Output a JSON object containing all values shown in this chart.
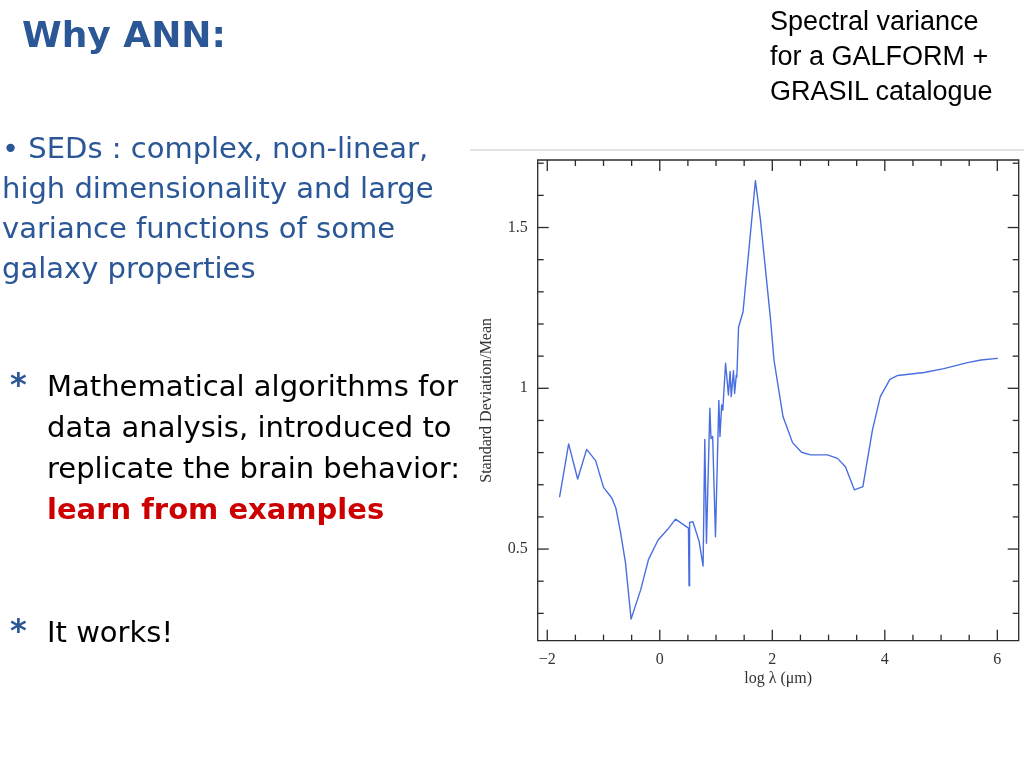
{
  "chart_data": {
    "type": "line",
    "title": "Why ANN:",
    "xlabel": "log λ (μm)",
    "ylabel": "Standard Deviation/Mean",
    "annotations": [
      "Spectral variance for a GALFORM + GRASIL catalogue",
      "• SEDs : complex, non-linear, high dimensionality and large variance functions of some galaxy properties",
      "*",
      "Mathematical algorithms for data analysis, introduced to replicate the brain behavior:",
      "learn from examples",
      "*",
      "It works!"
    ],
    "x": [
      -1.78,
      -1.62,
      -1.46,
      -1.3,
      -1.14,
      -1.0,
      -0.85,
      -0.78,
      -0.7,
      -0.61,
      -0.51,
      -0.34,
      -0.2,
      -0.03,
      0.13,
      0.28,
      0.51,
      0.52,
      0.53,
      0.59,
      0.7,
      0.77,
      0.8,
      0.83,
      0.89,
      0.91,
      0.94,
      0.99,
      1.05,
      1.07,
      1.1,
      1.12,
      1.17,
      1.22,
      1.25,
      1.27,
      1.31,
      1.33,
      1.36,
      1.37,
      1.4,
      1.48,
      1.7,
      1.79,
      1.97,
      2.03,
      2.19,
      2.36,
      2.52,
      2.68,
      2.98,
      3.16,
      3.3,
      3.46,
      3.61,
      3.78,
      3.92,
      4.09,
      4.23,
      4.7,
      5.05,
      5.47,
      5.71,
      6.0
    ],
    "series": [
      {
        "color": "#4a6ee0",
        "values": [
          0.663,
          0.827,
          0.718,
          0.81,
          0.775,
          0.692,
          0.658,
          0.627,
          0.554,
          0.458,
          0.282,
          0.373,
          0.468,
          0.528,
          0.559,
          0.593,
          0.565,
          0.386,
          0.583,
          0.585,
          0.523,
          0.447,
          0.841,
          0.518,
          0.938,
          0.844,
          0.85,
          0.538,
          0.962,
          0.85,
          0.948,
          0.932,
          1.078,
          0.979,
          1.052,
          0.974,
          1.055,
          0.984,
          1.041,
          1.035,
          1.19,
          1.238,
          1.646,
          1.523,
          1.212,
          1.088,
          0.912,
          0.831,
          0.801,
          0.793,
          0.793,
          0.782,
          0.756,
          0.684,
          0.694,
          0.87,
          0.974,
          1.028,
          1.04,
          1.049,
          1.061,
          1.08,
          1.088,
          1.093
        ]
      }
    ],
    "xlim": [
      -2.17,
      6.38
    ],
    "ylim": [
      0.215,
      1.71
    ],
    "xticks": [
      {
        "value": -2,
        "label": "−2"
      },
      {
        "value": -1.5,
        "label": null
      },
      {
        "value": -1,
        "label": null
      },
      {
        "value": -0.5,
        "label": null
      },
      0,
      {
        "value": 0.5,
        "label": null
      },
      {
        "value": 1,
        "label": null
      },
      {
        "value": 1.5,
        "label": null
      },
      2,
      {
        "value": 2.5,
        "label": null
      },
      {
        "value": 3,
        "label": null
      },
      {
        "value": 3.5,
        "label": null
      },
      4,
      {
        "value": 4.5,
        "label": null
      },
      {
        "value": 5,
        "label": null
      },
      {
        "value": 5.5,
        "label": null
      },
      6
    ],
    "yticks": [
      {
        "value": 0.3,
        "label": null
      },
      {
        "value": 0.4,
        "label": null
      },
      0.5,
      {
        "value": 0.6,
        "label": null
      },
      {
        "value": 0.7,
        "label": null
      },
      {
        "value": 0.8,
        "label": null
      },
      {
        "value": 0.9,
        "label": null
      },
      1,
      {
        "value": 1.1,
        "label": null
      },
      {
        "value": 1.2,
        "label": null
      },
      {
        "value": 1.3,
        "label": null
      },
      {
        "value": 1.4,
        "label": null
      },
      1.5,
      {
        "value": 1.6,
        "label": null
      },
      {
        "value": 1.7,
        "label": null
      }
    ],
    "grid": false,
    "legend": false,
    "marker": "none"
  }
}
